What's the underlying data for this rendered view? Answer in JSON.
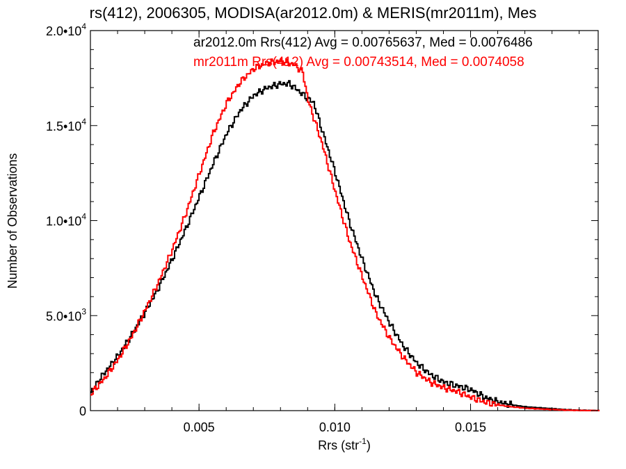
{
  "chart_data": {
    "type": "line",
    "title": "rs(412), 2006305, MODISA(ar2012.0m) & MERIS(mr2011m), Mes",
    "xlabel": "Rrs (str",
    "xlabel_sup": "-1",
    "xlabel_close": ")",
    "ylabel": "Number of Observations",
    "xlim": [
      0.001,
      0.0197
    ],
    "ylim": [
      0,
      20000
    ],
    "x_ticks": [
      {
        "value": 0.005,
        "label": "0.005"
      },
      {
        "value": 0.01,
        "label": "0.010"
      },
      {
        "value": 0.015,
        "label": "0.015"
      }
    ],
    "y_ticks": [
      {
        "value": 0,
        "mant": "0",
        "exp": ""
      },
      {
        "value": 5000,
        "mant": "5.0•10",
        "exp": "3"
      },
      {
        "value": 10000,
        "mant": "1.0•10",
        "exp": "4"
      },
      {
        "value": 15000,
        "mant": "1.5•10",
        "exp": "4"
      },
      {
        "value": 20000,
        "mant": "2.0•10",
        "exp": "4"
      }
    ],
    "grid": false,
    "legend_position": "top-right",
    "series": [
      {
        "name": "ar2012.0m",
        "legend": "ar2012.0m Rrs(412) Avg = 0.00765637, Med = 0.0076486",
        "color": "#000000",
        "points": [
          [
            0.001,
            1000
          ],
          [
            0.0015,
            2000
          ],
          [
            0.002,
            2900
          ],
          [
            0.0025,
            4000
          ],
          [
            0.003,
            5200
          ],
          [
            0.0035,
            6500
          ],
          [
            0.004,
            8000
          ],
          [
            0.0045,
            9600
          ],
          [
            0.005,
            11300
          ],
          [
            0.0055,
            13000
          ],
          [
            0.006,
            14600
          ],
          [
            0.0065,
            15800
          ],
          [
            0.007,
            16600
          ],
          [
            0.0075,
            17000
          ],
          [
            0.008,
            17200
          ],
          [
            0.0083,
            17200
          ],
          [
            0.0085,
            17000
          ],
          [
            0.009,
            16400
          ],
          [
            0.0092,
            16200
          ],
          [
            0.0095,
            14800
          ],
          [
            0.01,
            12500
          ],
          [
            0.0105,
            10000
          ],
          [
            0.011,
            7900
          ],
          [
            0.0115,
            6000
          ],
          [
            0.012,
            4600
          ],
          [
            0.0125,
            3400
          ],
          [
            0.013,
            2500
          ],
          [
            0.0135,
            1900
          ],
          [
            0.014,
            1500
          ],
          [
            0.0145,
            1300
          ],
          [
            0.015,
            1100
          ],
          [
            0.0155,
            700
          ],
          [
            0.016,
            450
          ],
          [
            0.0165,
            300
          ],
          [
            0.017,
            200
          ],
          [
            0.0175,
            150
          ],
          [
            0.018,
            100
          ],
          [
            0.0185,
            50
          ],
          [
            0.019,
            20
          ],
          [
            0.0197,
            0
          ]
        ]
      },
      {
        "name": "mr2011m",
        "legend": "mr2011m Rrs(412) Avg = 0.00743514, Med = 0.0074058",
        "color": "#ff0000",
        "points": [
          [
            0.001,
            900
          ],
          [
            0.0015,
            1700
          ],
          [
            0.002,
            2700
          ],
          [
            0.0025,
            3900
          ],
          [
            0.003,
            5300
          ],
          [
            0.0035,
            6800
          ],
          [
            0.004,
            8500
          ],
          [
            0.0045,
            10400
          ],
          [
            0.005,
            12500
          ],
          [
            0.0055,
            14600
          ],
          [
            0.006,
            16200
          ],
          [
            0.0065,
            17300
          ],
          [
            0.007,
            18000
          ],
          [
            0.0075,
            18300
          ],
          [
            0.008,
            18400
          ],
          [
            0.0085,
            18200
          ],
          [
            0.0088,
            17800
          ],
          [
            0.009,
            16300
          ],
          [
            0.0095,
            14100
          ],
          [
            0.01,
            11500
          ],
          [
            0.0105,
            9000
          ],
          [
            0.011,
            7000
          ],
          [
            0.0115,
            5100
          ],
          [
            0.012,
            3800
          ],
          [
            0.0125,
            2800
          ],
          [
            0.013,
            2000
          ],
          [
            0.0135,
            1500
          ],
          [
            0.014,
            1200
          ],
          [
            0.0145,
            1000
          ],
          [
            0.015,
            700
          ],
          [
            0.0155,
            450
          ],
          [
            0.016,
            300
          ],
          [
            0.0165,
            200
          ],
          [
            0.017,
            130
          ],
          [
            0.0175,
            90
          ],
          [
            0.018,
            60
          ],
          [
            0.0185,
            30
          ],
          [
            0.019,
            10
          ],
          [
            0.0197,
            0
          ]
        ]
      }
    ]
  }
}
